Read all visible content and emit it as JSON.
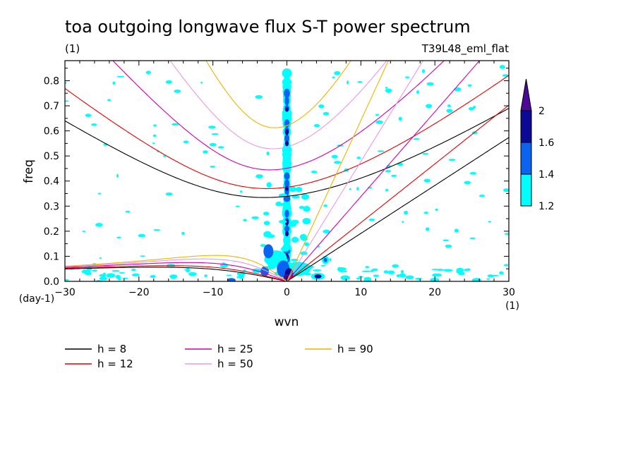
{
  "chart_data": {
    "type": "heatmap",
    "title": "toa outgoing longwave flux S-T power spectrum",
    "subtitle_left": "(1)",
    "subtitle_right": "T39L48_eml_flat",
    "xlabel": "wvn",
    "ylabel": "freq",
    "x_unit": "(1)",
    "y_unit": "(day-1)",
    "xlim": [
      -30,
      30
    ],
    "ylim": [
      0,
      0.88
    ],
    "xticks": [
      -30,
      -20,
      -10,
      0,
      10,
      20,
      30
    ],
    "yticks": [
      0,
      0.1,
      0.2,
      0.3,
      0.4,
      0.5,
      0.6,
      0.7,
      0.8
    ],
    "colorbar": {
      "levels": [
        1.2,
        1.4,
        1.6,
        2
      ],
      "level_labels": [
        "1.2",
        "1.4",
        "1.6",
        "2"
      ],
      "colors": [
        "#00ffff",
        "#0a64f0",
        "#0a0a96",
        "#4b0a96"
      ]
    },
    "dispersion_curves": [
      {
        "label": "h =  8",
        "h": 8,
        "color": "#000000"
      },
      {
        "label": "h = 12",
        "h": 12,
        "color": "#e60000"
      },
      {
        "label": "h = 25",
        "h": 25,
        "color": "#d200aa"
      },
      {
        "label": "h = 50",
        "h": 50,
        "color": "#e699e6"
      },
      {
        "label": "h = 90",
        "h": 90,
        "color": "#f0b400"
      }
    ]
  }
}
